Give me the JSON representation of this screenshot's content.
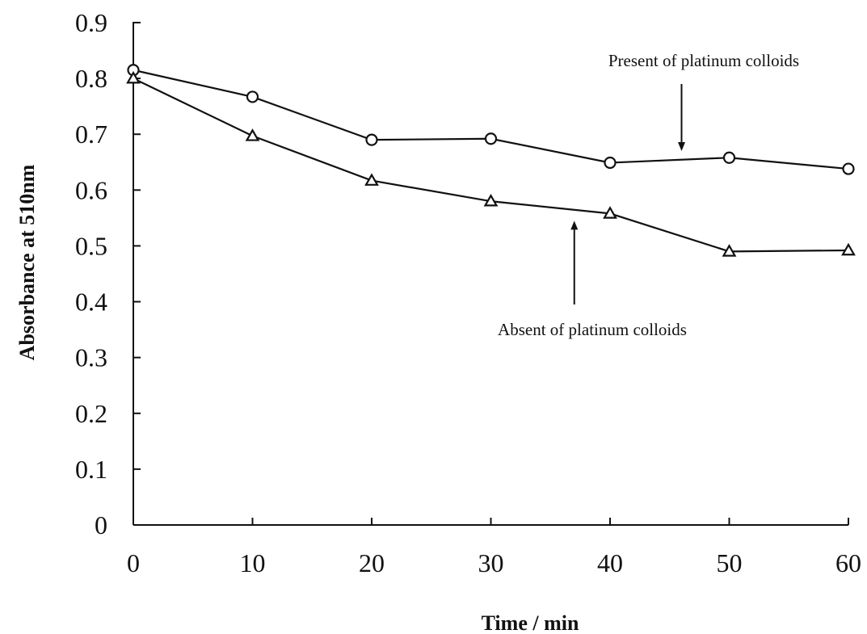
{
  "chart_data": {
    "type": "line",
    "xlabel": "Time / min",
    "ylabel": "Absorbance at 510nm",
    "xlim": [
      0,
      60
    ],
    "ylim": [
      0,
      0.9
    ],
    "x": [
      0,
      10,
      20,
      30,
      40,
      50,
      60
    ],
    "xticks": [
      "0",
      "10",
      "20",
      "30",
      "40",
      "50",
      "60"
    ],
    "yticks": [
      "0",
      "0.1",
      "0.2",
      "0.3",
      "0.4",
      "0.5",
      "0.6",
      "0.7",
      "0.8",
      "0.9"
    ],
    "grid": false,
    "series": [
      {
        "marker": "circle",
        "values": [
          0.815,
          0.767,
          0.69,
          0.692,
          0.649,
          0.658,
          0.638
        ]
      },
      {
        "marker": "triangle",
        "values": [
          0.8,
          0.697,
          0.617,
          0.58,
          0.558,
          0.49,
          0.492
        ]
      }
    ],
    "annotations": [
      {
        "text": "Present of platinum colloids",
        "series_index": 0,
        "arrow_to": {
          "x": 46,
          "y": 0.67
        },
        "arrow_from": {
          "x": 46,
          "y": 0.79
        }
      },
      {
        "text": "Absent of platinum colloids",
        "series_index": 1,
        "arrow_to": {
          "x": 37,
          "y": 0.545
        },
        "arrow_from": {
          "x": 37,
          "y": 0.395
        }
      }
    ],
    "colors": {
      "line": "#111111",
      "marker_fill": "#ffffff",
      "background": "#ffffff"
    }
  }
}
